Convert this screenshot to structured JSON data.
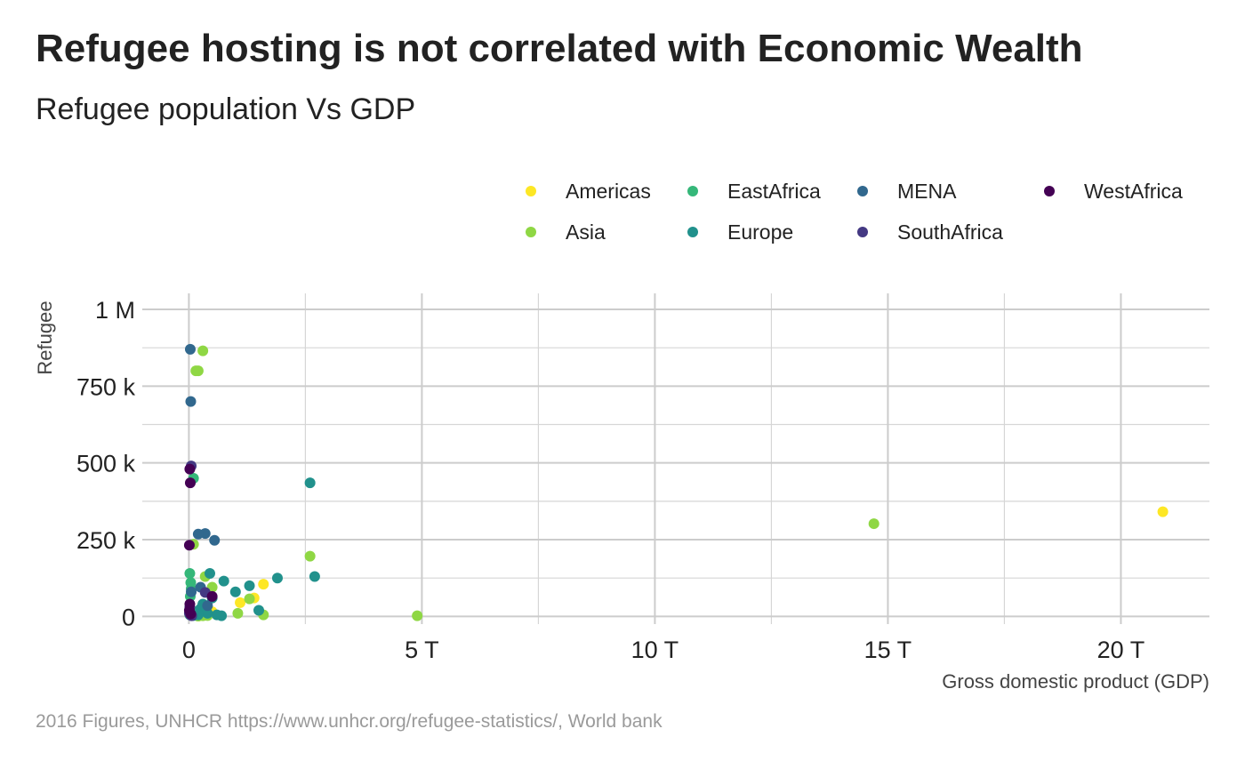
{
  "chart_data": {
    "type": "scatter",
    "title": "Refugee hosting is not correlated with Economic Wealth",
    "subtitle": "Refugee population Vs GDP",
    "caption": "2016 Figures, UNHCR https://www.unhcr.org/refugee-statistics/, World bank",
    "xlabel": "Gross domestic product (GDP)",
    "ylabel": "Refugee",
    "xlim": [
      -1000000000000.0,
      21900000000000.0
    ],
    "ylim": [
      -25000,
      1000000
    ],
    "x_ticks": [
      {
        "value": 0,
        "label": "0"
      },
      {
        "value": 5000000000000.0,
        "label": "5 T"
      },
      {
        "value": 10000000000000.0,
        "label": "10 T"
      },
      {
        "value": 15000000000000.0,
        "label": "15 T"
      },
      {
        "value": 20000000000000.0,
        "label": "20 T"
      }
    ],
    "y_ticks": [
      {
        "value": 0,
        "label": "0"
      },
      {
        "value": 250000,
        "label": "250 k"
      },
      {
        "value": 500000,
        "label": "500 k"
      },
      {
        "value": 750000,
        "label": "750 k"
      },
      {
        "value": 1000000,
        "label": "1 M"
      }
    ],
    "grid": true,
    "legend_position": "top-right",
    "series": [
      {
        "name": "Americas",
        "color": "#fde725",
        "points": [
          [
            20900000000000.0,
            341000
          ],
          [
            1100000000000.0,
            45000
          ],
          [
            1600000000000.0,
            105000
          ],
          [
            1400000000000.0,
            60000
          ],
          [
            300000000000.0,
            3000
          ],
          [
            200000000000.0,
            1000
          ],
          [
            50000000000.0,
            8000
          ],
          [
            500000000000.0,
            15000
          ]
        ]
      },
      {
        "name": "Asia",
        "color": "#8fd744",
        "points": [
          [
            14700000000000.0,
            302000
          ],
          [
            4900000000000.0,
            2000
          ],
          [
            300000000000.0,
            865000
          ],
          [
            150000000000.0,
            800000
          ],
          [
            200000000000.0,
            800000
          ],
          [
            2600000000000.0,
            196000
          ],
          [
            100000000000.0,
            235000
          ],
          [
            350000000000.0,
            130000
          ],
          [
            500000000000.0,
            95000
          ],
          [
            1300000000000.0,
            57000
          ],
          [
            1600000000000.0,
            5000
          ],
          [
            1050000000000.0,
            10000
          ],
          [
            400000000000.0,
            3000
          ],
          [
            300000000000.0,
            2000
          ],
          [
            200000000000.0,
            1000
          ],
          [
            150000000000.0,
            4000
          ]
        ]
      },
      {
        "name": "EastAfrica",
        "color": "#35b779",
        "points": [
          [
            100000000000.0,
            450000
          ],
          [
            20000000000.0,
            140000
          ],
          [
            50000000000.0,
            90000
          ],
          [
            30000000000.0,
            65000
          ],
          [
            40000000000.0,
            110000
          ],
          [
            60000000000.0,
            20000
          ],
          [
            20000000000.0,
            5000
          ]
        ]
      },
      {
        "name": "Europe",
        "color": "#21918c",
        "points": [
          [
            2600000000000.0,
            435000
          ],
          [
            2700000000000.0,
            130000
          ],
          [
            1900000000000.0,
            125000
          ],
          [
            1300000000000.0,
            100000
          ],
          [
            1000000000000.0,
            80000
          ],
          [
            750000000000.0,
            115000
          ],
          [
            450000000000.0,
            140000
          ],
          [
            500000000000.0,
            60000
          ],
          [
            300000000000.0,
            40000
          ],
          [
            250000000000.0,
            25000
          ],
          [
            1500000000000.0,
            20000
          ],
          [
            600000000000.0,
            5000
          ],
          [
            400000000000.0,
            10000
          ],
          [
            200000000000.0,
            5000
          ],
          [
            700000000000.0,
            2000
          ],
          [
            100000000000.0,
            3000
          ]
        ]
      },
      {
        "name": "MENA",
        "color": "#31688e",
        "points": [
          [
            30000000000.0,
            870000
          ],
          [
            40000000000.0,
            700000
          ],
          [
            350000000000.0,
            270000
          ],
          [
            200000000000.0,
            268000
          ],
          [
            550000000000.0,
            248000
          ],
          [
            50000000000.0,
            80000
          ],
          [
            400000000000.0,
            35000
          ],
          [
            20000000000.0,
            15000
          ],
          [
            250000000000.0,
            95000
          ]
        ]
      },
      {
        "name": "SouthAfrica",
        "color": "#443983",
        "points": [
          [
            50000000000.0,
            490000
          ],
          [
            350000000000.0,
            78000
          ],
          [
            20000000000.0,
            30000
          ],
          [
            10000000000.0,
            10000
          ],
          [
            30000000000.0,
            5000
          ],
          [
            60000000000.0,
            2000
          ]
        ]
      },
      {
        "name": "WestAfrica",
        "color": "#440154",
        "points": [
          [
            20000000000.0,
            480000
          ],
          [
            30000000000.0,
            435000
          ],
          [
            10000000000.0,
            232000
          ],
          [
            500000000000.0,
            65000
          ],
          [
            20000000000.0,
            40000
          ],
          [
            40000000000.0,
            8000
          ],
          [
            10000000000.0,
            20000
          ]
        ]
      }
    ]
  }
}
